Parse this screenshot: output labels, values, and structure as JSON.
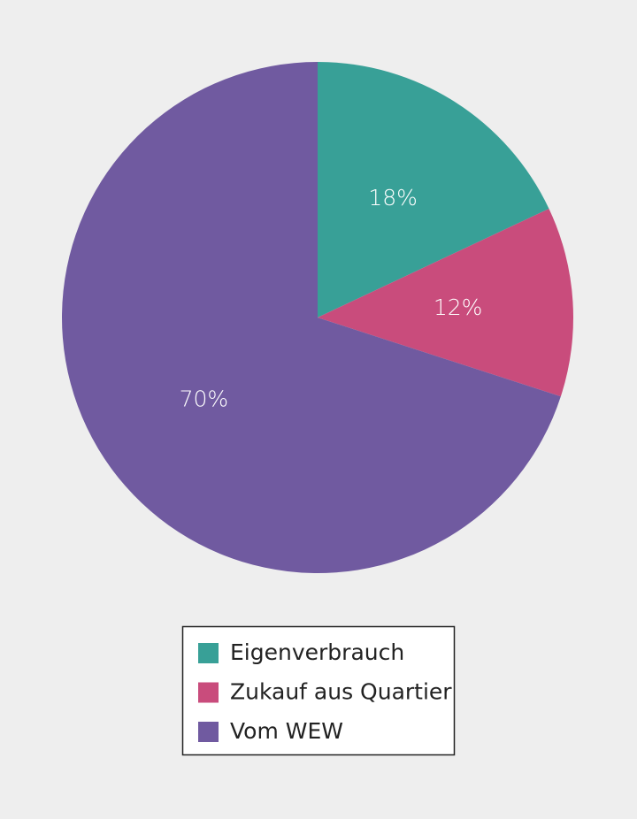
{
  "chart_data": {
    "type": "pie",
    "categories": [
      "Eigenverbrauch",
      "Zukauf aus Quartier",
      "Vom WEW"
    ],
    "values": [
      18,
      12,
      70
    ],
    "value_labels": [
      "18%",
      "12%",
      "70%"
    ],
    "colors": [
      "#38a097",
      "#c94c7c",
      "#705aa0"
    ],
    "legend": "bottom"
  }
}
